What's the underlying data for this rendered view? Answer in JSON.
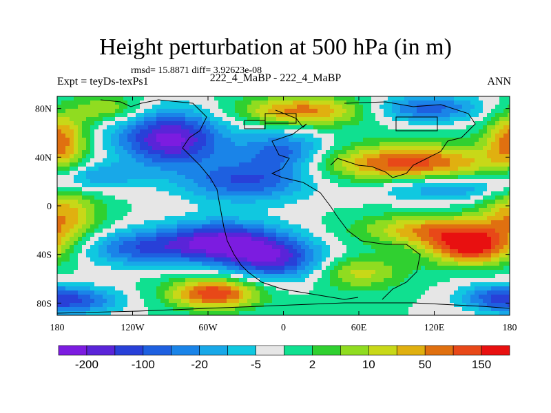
{
  "chart_data": {
    "type": "heatmap",
    "title": "Height perturbation at 500 hPa (in m)",
    "stats_text": "rmsd= 15.8871 diff= 3.92623e-08",
    "left_label": "Expt = teyDs-texPs1",
    "center_label": "222_4_MaBP - 222_4_MaBP",
    "right_label": "ANN",
    "x_axis": {
      "range": [
        -180,
        180
      ],
      "ticks": [
        {
          "value": -180,
          "label": "180"
        },
        {
          "value": -120,
          "label": "120W"
        },
        {
          "value": -60,
          "label": "60W"
        },
        {
          "value": 0,
          "label": "0"
        },
        {
          "value": 60,
          "label": "60E"
        },
        {
          "value": 120,
          "label": "120E"
        },
        {
          "value": 180,
          "label": "180"
        }
      ]
    },
    "y_axis": {
      "range": [
        -90,
        90
      ],
      "ticks": [
        {
          "value": 80,
          "label": "80N"
        },
        {
          "value": 40,
          "label": "40N"
        },
        {
          "value": 0,
          "label": "0"
        },
        {
          "value": -40,
          "label": "40S"
        },
        {
          "value": -80,
          "label": "80S"
        }
      ]
    },
    "colorbar": {
      "colors": [
        "#7c1ce0",
        "#5a24d8",
        "#2840d8",
        "#1e60e0",
        "#1a84e8",
        "#18a8e8",
        "#10c8e0",
        "#e6e6e6",
        "#10e090",
        "#30d030",
        "#90dc20",
        "#c8d818",
        "#e0b010",
        "#e07010",
        "#e84818",
        "#e81010"
      ],
      "labels": [
        {
          "after_box": 1,
          "label": "-200"
        },
        {
          "after_box": 3,
          "label": "-100"
        },
        {
          "after_box": 5,
          "label": "-20"
        },
        {
          "after_box": 7,
          "label": "-5"
        },
        {
          "after_box": 9,
          "label": "2"
        },
        {
          "after_box": 11,
          "label": "10"
        },
        {
          "after_box": 13,
          "label": "50"
        },
        {
          "after_box": 15,
          "label": "150"
        }
      ]
    },
    "field_features": [
      {
        "lon": -90,
        "lat": 55,
        "amp": -7.5,
        "sx": 30,
        "sy": 16
      },
      {
        "lon": -30,
        "lat": 20,
        "amp": -5.0,
        "sx": 35,
        "sy": 12
      },
      {
        "lon": -50,
        "lat": -30,
        "amp": -7.5,
        "sx": 35,
        "sy": 12
      },
      {
        "lon": -5,
        "lat": -45,
        "amp": -5.5,
        "sx": 28,
        "sy": 12
      },
      {
        "lon": 0,
        "lat": 45,
        "amp": -4.5,
        "sx": 25,
        "sy": 12
      },
      {
        "lon": 115,
        "lat": 80,
        "amp": -4.5,
        "sx": 30,
        "sy": 8
      },
      {
        "lon": -120,
        "lat": -35,
        "amp": -4.0,
        "sx": 30,
        "sy": 10
      },
      {
        "lon": -165,
        "lat": -78,
        "amp": -4.5,
        "sx": 25,
        "sy": 8
      },
      {
        "lon": 165,
        "lat": -75,
        "amp": -3.0,
        "sx": 20,
        "sy": 8
      },
      {
        "lon": 130,
        "lat": 15,
        "amp": -3.5,
        "sx": 40,
        "sy": 8
      },
      {
        "lon": -150,
        "lat": 25,
        "amp": -3.0,
        "sx": 25,
        "sy": 8
      },
      {
        "lon": 15,
        "lat": 78,
        "amp": 5.5,
        "sx": 35,
        "sy": 9
      },
      {
        "lon": 100,
        "lat": 35,
        "amp": 6.5,
        "sx": 50,
        "sy": 11
      },
      {
        "lon": 120,
        "lat": -20,
        "amp": 5.0,
        "sx": 40,
        "sy": 9
      },
      {
        "lon": 150,
        "lat": -35,
        "amp": 7.0,
        "sx": 25,
        "sy": 10
      },
      {
        "lon": -55,
        "lat": -72,
        "amp": 7.0,
        "sx": 25,
        "sy": 9
      },
      {
        "lon": -178,
        "lat": 55,
        "amp": 5.5,
        "sx": 15,
        "sy": 15
      },
      {
        "lon": -175,
        "lat": -5,
        "amp": 4.5,
        "sx": 20,
        "sy": 15
      },
      {
        "lon": 60,
        "lat": -55,
        "amp": 3.5,
        "sx": 25,
        "sy": 10
      },
      {
        "lon": -140,
        "lat": 80,
        "amp": 3.0,
        "sx": 20,
        "sy": 8
      }
    ]
  }
}
